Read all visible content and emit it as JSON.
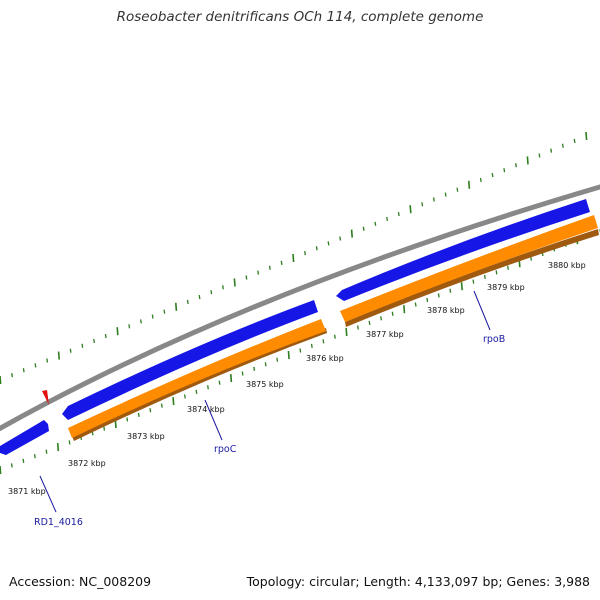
{
  "title": "Roseobacter denitrificans OCh 114, complete genome",
  "footer": {
    "accession": "Accession: NC_008209",
    "summary": "Topology: circular; Length: 4,133,097 bp; Genes: 3,988"
  },
  "colors": {
    "backbone": "#888888",
    "forward_feature": "#1616e6",
    "reverse_feature": "#ff8c00",
    "reverse_feature_shadow": "#a05a10",
    "gc_skew_ticks": "#2e7d1f",
    "marker": "#e01010",
    "label_line": "#1a1aa0"
  },
  "scale_ticks": [
    {
      "label": "3871 kbp"
    },
    {
      "label": "3872 kbp"
    },
    {
      "label": "3873 kbp"
    },
    {
      "label": "3874 kbp"
    },
    {
      "label": "3875 kbp"
    },
    {
      "label": "3876 kbp"
    },
    {
      "label": "3877 kbp"
    },
    {
      "label": "3878 kbp"
    },
    {
      "label": "3879 kbp"
    },
    {
      "label": "3880 kbp"
    }
  ],
  "gene_labels": [
    {
      "name": "RD1_4016"
    },
    {
      "name": "rpoC"
    },
    {
      "name": "rpoB"
    }
  ]
}
